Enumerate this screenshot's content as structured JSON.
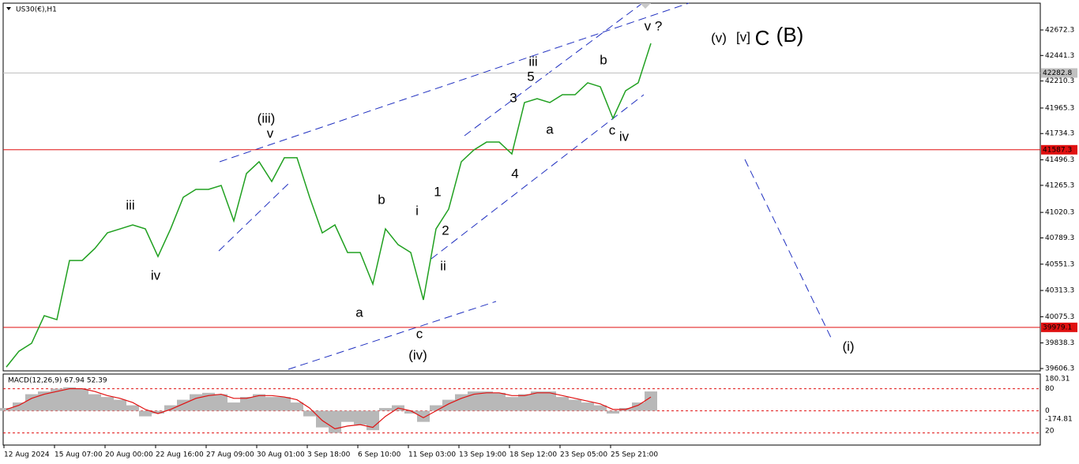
{
  "chart_data": [
    {
      "type": "line",
      "title": "US30(€),H1",
      "color": "#20a020",
      "categories": [
        "12 Aug 2024",
        null,
        null,
        null,
        "15 Aug 07:00",
        null,
        null,
        null,
        "20 Aug 00:00",
        null,
        null,
        null,
        "22 Aug 16:00",
        null,
        null,
        null,
        "27 Aug 09:00",
        null,
        null,
        null,
        "30 Aug 01:00",
        null,
        null,
        null,
        "3 Sep 18:00",
        null,
        null,
        null,
        "6 Sep 10:00",
        null,
        null,
        null,
        "11 Sep 03:00",
        null,
        null,
        null,
        "13 Sep 19:00",
        null,
        null,
        null,
        "18 Sep 12:00",
        null,
        null,
        null,
        "23 Sep 05:00",
        null,
        null,
        null,
        "25 Sep 21:00",
        null,
        null,
        null
      ],
      "values": [
        39620,
        39763,
        39835,
        40085,
        40049,
        40585,
        40585,
        40693,
        40835,
        40871,
        40907,
        40871,
        40621,
        40871,
        41157,
        41229,
        41229,
        41264,
        40943,
        41372,
        41479,
        41300,
        41515,
        41515,
        41157,
        40835,
        40907,
        40657,
        40657,
        40371,
        40871,
        40728,
        40657,
        40228,
        40871,
        41050,
        41479,
        41586,
        41657,
        41657,
        41550,
        42015,
        42050,
        42015,
        42086,
        42086,
        42194,
        42158,
        41872,
        42122,
        42194,
        42551
      ],
      "ylim": [
        39585,
        42908
      ],
      "yticks": [
        42672.3,
        42441.3,
        42210.3,
        41965.3,
        41734.3,
        41496.3,
        41265.3,
        41020.3,
        40789.3,
        40551.3,
        40313.3,
        40075.3,
        39838.3,
        39606.3
      ],
      "levels": [
        {
          "value": 42282.8,
          "color": "#c0c0c0"
        },
        {
          "value": 41587.3,
          "color": "#e01010"
        },
        {
          "value": 39979.1,
          "color": "#e01010"
        }
      ],
      "annotations": [
        {
          "text": "(iii)",
          "color": "#1010c0"
        },
        {
          "text": "v",
          "color": "#e020e0"
        },
        {
          "text": "iii",
          "color": "#e020e0"
        },
        {
          "text": "iv",
          "color": "#e020e0"
        },
        {
          "text": "a",
          "color": "#e020e0"
        },
        {
          "text": "b",
          "color": "#e020e0"
        },
        {
          "text": "i",
          "color": "#e020e0"
        },
        {
          "text": "ii",
          "color": "#e020e0"
        },
        {
          "text": "c",
          "color": "#e020e0"
        },
        {
          "text": "(iv)",
          "color": "#1010c0"
        },
        {
          "text": "1",
          "color": "#000000"
        },
        {
          "text": "2",
          "color": "#000000"
        },
        {
          "text": "3",
          "color": "#000000"
        },
        {
          "text": "4",
          "color": "#000000"
        },
        {
          "text": "5",
          "color": "#000000"
        },
        {
          "text": "iii",
          "color": "#e020e0"
        },
        {
          "text": "a",
          "color": "#000000"
        },
        {
          "text": "b",
          "color": "#000000"
        },
        {
          "text": "c",
          "color": "#000000"
        },
        {
          "text": "iv",
          "color": "#e020e0"
        },
        {
          "text": "v ?",
          "color": "#e020e0"
        },
        {
          "text": "(v)",
          "color": "#1010c0"
        },
        {
          "text": "[v]",
          "color": "#208020"
        },
        {
          "text": "C",
          "color": "#1010c0"
        },
        {
          "text": "(B)",
          "color": "#e01010"
        },
        {
          "text": "(i)",
          "color": "#1010c0"
        }
      ]
    },
    {
      "type": "macd",
      "title": "MACD(12,26,9) 67.94 52.39",
      "series": [
        {
          "color": "#b8b8b8",
          "style": "histogram",
          "values": [
            10,
            30,
            60,
            70,
            80,
            85,
            80,
            60,
            50,
            40,
            20,
            -20,
            -10,
            20,
            40,
            60,
            65,
            60,
            30,
            50,
            60,
            50,
            50,
            30,
            -20,
            -60,
            -80,
            -40,
            -50,
            -70,
            10,
            20,
            -10,
            -40,
            20,
            40,
            60,
            70,
            70,
            65,
            50,
            60,
            70,
            70,
            50,
            40,
            30,
            20,
            -10,
            10,
            30,
            70
          ]
        },
        {
          "color": "#e01010",
          "style": "line",
          "values": [
            5,
            20,
            45,
            60,
            70,
            80,
            80,
            70,
            55,
            45,
            30,
            5,
            -10,
            5,
            25,
            45,
            55,
            60,
            45,
            45,
            55,
            55,
            50,
            40,
            10,
            -35,
            -65,
            -55,
            -50,
            -60,
            -20,
            10,
            0,
            -25,
            0,
            25,
            45,
            60,
            65,
            65,
            55,
            55,
            65,
            65,
            55,
            45,
            35,
            25,
            5,
            5,
            20,
            50
          ]
        }
      ],
      "ylim": [
        -121,
        133
      ],
      "yticks": [
        80,
        0
      ],
      "side_labels": [
        "180.31",
        "-174.81",
        "20"
      ]
    }
  ]
}
